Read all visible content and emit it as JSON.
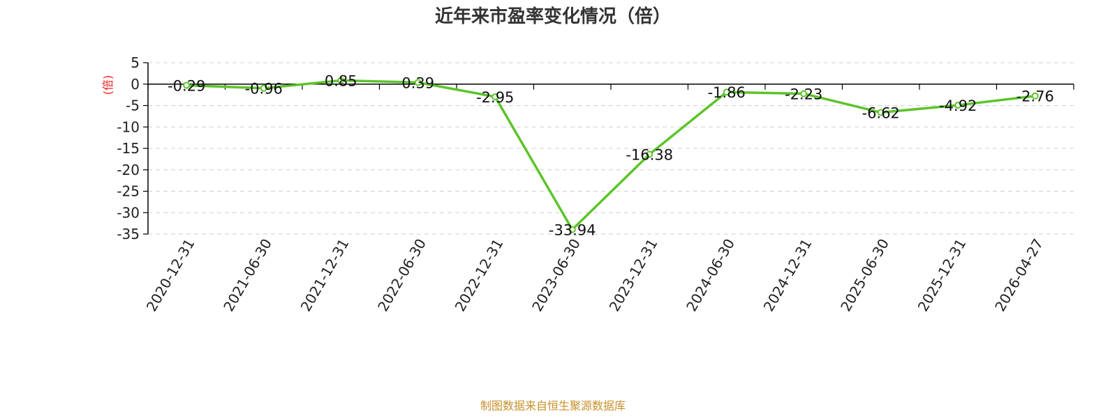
{
  "chart_data": {
    "type": "line",
    "title": "近年来市盈率变化情况（倍）",
    "ylabel": "(倍)",
    "xlabel": "",
    "categories": [
      "2020-12-31",
      "2021-06-30",
      "2021-12-31",
      "2022-06-30",
      "2022-12-31",
      "2023-06-30",
      "2023-12-31",
      "2024-06-30",
      "2024-12-31",
      "2025-06-30",
      "2025-12-31",
      "2026-04-27"
    ],
    "series": [
      {
        "values": [
          -0.29,
          -0.96,
          0.85,
          0.39,
          -2.95,
          -33.94,
          -16.38,
          -1.86,
          -2.23,
          -6.62,
          -4.92,
          -2.76
        ],
        "labels": [
          "-0.29",
          "-0.96",
          "0.85",
          "0.39",
          "-2.95",
          "-33.94",
          "-16.38",
          "-1.86",
          "-2.23",
          "-6.62",
          "-4.92",
          "-2.76"
        ]
      }
    ],
    "ylim": [
      -35,
      5
    ],
    "yticks": [
      5,
      0,
      -5,
      -10,
      -15,
      -20,
      -25,
      -30,
      -35
    ],
    "grid": true,
    "legend": "none",
    "line_color": "#5cc42a",
    "ylabel_color": "#e8201c"
  },
  "footer": {
    "source": "制图数据来自恒生聚源数据库",
    "source_color": "#c8902a"
  }
}
